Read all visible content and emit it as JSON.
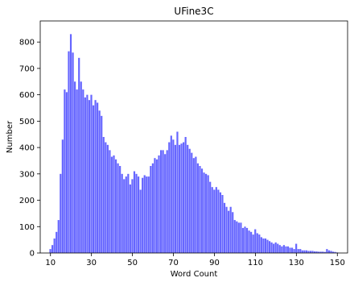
{
  "chart_data": {
    "type": "bar",
    "title": "UFine3C",
    "xlabel": "Word Count",
    "ylabel": "Number",
    "xlim": [
      5,
      155
    ],
    "ylim": [
      0,
      880
    ],
    "xticks": [
      10,
      30,
      50,
      70,
      90,
      110,
      130,
      150
    ],
    "yticks": [
      0,
      100,
      200,
      300,
      400,
      500,
      600,
      700,
      800
    ],
    "bar_color": "#0000ff",
    "bar_alpha": 0.6,
    "bin_width": 1,
    "x": [
      10,
      11,
      12,
      13,
      14,
      15,
      16,
      17,
      18,
      19,
      20,
      21,
      22,
      23,
      24,
      25,
      26,
      27,
      28,
      29,
      30,
      31,
      32,
      33,
      34,
      35,
      36,
      37,
      38,
      39,
      40,
      41,
      42,
      43,
      44,
      45,
      46,
      47,
      48,
      49,
      50,
      51,
      52,
      53,
      54,
      55,
      56,
      57,
      58,
      59,
      60,
      61,
      62,
      63,
      64,
      65,
      66,
      67,
      68,
      69,
      70,
      71,
      72,
      73,
      74,
      75,
      76,
      77,
      78,
      79,
      80,
      81,
      82,
      83,
      84,
      85,
      86,
      87,
      88,
      89,
      90,
      91,
      92,
      93,
      94,
      95,
      96,
      97,
      98,
      99,
      100,
      101,
      102,
      103,
      104,
      105,
      106,
      107,
      108,
      109,
      110,
      111,
      112,
      113,
      114,
      115,
      116,
      117,
      118,
      119,
      120,
      121,
      122,
      123,
      124,
      125,
      126,
      127,
      128,
      129,
      130,
      131,
      132,
      133,
      134,
      135,
      136,
      137,
      138,
      139,
      140,
      141,
      142,
      143,
      144,
      145,
      146,
      147,
      148,
      149,
      150
    ],
    "values": [
      15,
      30,
      55,
      80,
      125,
      300,
      430,
      620,
      610,
      765,
      830,
      760,
      650,
      620,
      740,
      650,
      620,
      590,
      600,
      580,
      600,
      560,
      580,
      570,
      540,
      520,
      440,
      420,
      410,
      390,
      365,
      370,
      355,
      340,
      330,
      300,
      280,
      290,
      300,
      260,
      280,
      310,
      300,
      290,
      240,
      285,
      295,
      290,
      290,
      330,
      340,
      360,
      355,
      370,
      390,
      390,
      375,
      390,
      420,
      445,
      430,
      410,
      460,
      410,
      415,
      420,
      440,
      410,
      395,
      380,
      360,
      365,
      340,
      330,
      320,
      305,
      300,
      295,
      270,
      250,
      240,
      250,
      240,
      230,
      220,
      190,
      175,
      160,
      175,
      155,
      125,
      120,
      115,
      115,
      95,
      100,
      95,
      85,
      80,
      70,
      90,
      75,
      70,
      60,
      55,
      55,
      50,
      45,
      40,
      35,
      40,
      35,
      30,
      25,
      30,
      25,
      25,
      20,
      20,
      15,
      35,
      15,
      15,
      10,
      10,
      10,
      8,
      8,
      8,
      6,
      6,
      5,
      5,
      5,
      4,
      15,
      10,
      8,
      5,
      4,
      2
    ]
  }
}
